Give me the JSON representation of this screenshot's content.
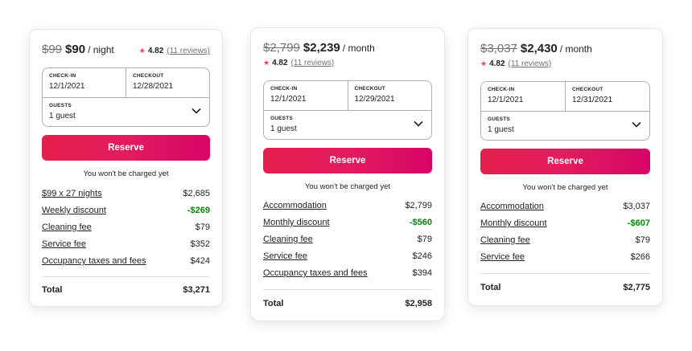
{
  "colors": {
    "accent": "#ff385c",
    "discount": "#008a05",
    "button": "#e31c5f"
  },
  "cards": [
    {
      "old_price": "$99",
      "new_price": "$90",
      "period": "/ night",
      "rating": "4.82",
      "reviews": "(11 reviews)",
      "checkin_label": "CHECK-IN",
      "checkin": "12/1/2021",
      "checkout_label": "CHECKOUT",
      "checkout": "12/28/2021",
      "guests_label": "GUESTS",
      "guests": "1 guest",
      "reserve": "Reserve",
      "note": "You won't be charged yet",
      "fees": [
        {
          "label": "$99 x 27 nights",
          "amount": "$2,685"
        },
        {
          "label": "Weekly discount",
          "amount": "-$269"
        },
        {
          "label": "Cleaning fee",
          "amount": "$79"
        },
        {
          "label": "Service fee",
          "amount": "$352"
        },
        {
          "label": "Occupancy taxes and fees",
          "amount": "$424"
        }
      ],
      "total_label": "Total",
      "total": "$3,271"
    },
    {
      "old_price": "$2,799",
      "new_price": "$2,239",
      "period": "/ month",
      "rating": "4.82",
      "reviews": "(11 reviews)",
      "checkin_label": "CHECK-IN",
      "checkin": "12/1/2021",
      "checkout_label": "CHECKOUT",
      "checkout": "12/29/2021",
      "guests_label": "GUESTS",
      "guests": "1 guest",
      "reserve": "Reserve",
      "note": "You won't be charged yet",
      "fees": [
        {
          "label": "Accommodation",
          "amount": "$2,799"
        },
        {
          "label": "Monthly discount",
          "amount": "-$560"
        },
        {
          "label": "Cleaning fee",
          "amount": "$79"
        },
        {
          "label": "Service fee",
          "amount": "$246"
        },
        {
          "label": "Occupancy taxes and fees",
          "amount": "$394"
        }
      ],
      "total_label": "Total",
      "total": "$2,958"
    },
    {
      "old_price": "$3,037",
      "new_price": "$2,430",
      "period": "/ month",
      "rating": "4.82",
      "reviews": "(11 reviews)",
      "checkin_label": "CHECK-IN",
      "checkin": "12/1/2021",
      "checkout_label": "CHECKOUT",
      "checkout": "12/31/2021",
      "guests_label": "GUESTS",
      "guests": "1 guest",
      "reserve": "Reserve",
      "note": "You won't be charged yet",
      "fees": [
        {
          "label": "Accommodation",
          "amount": "$3,037"
        },
        {
          "label": "Monthly discount",
          "amount": "-$607"
        },
        {
          "label": "Cleaning fee",
          "amount": "$79"
        },
        {
          "label": "Service fee",
          "amount": "$266"
        }
      ],
      "total_label": "Total",
      "total": "$2,775"
    }
  ]
}
